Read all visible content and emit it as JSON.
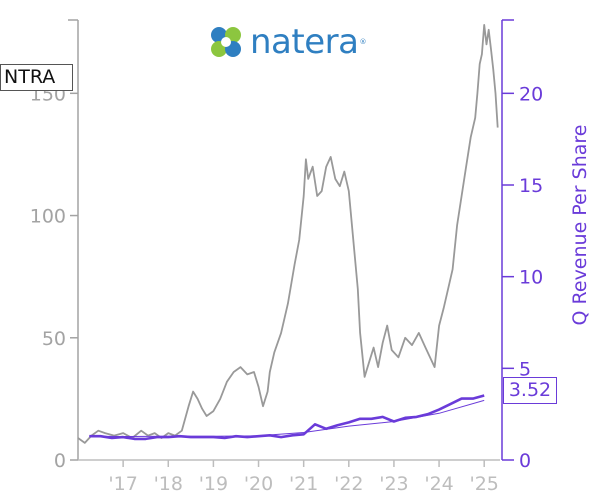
{
  "logo": {
    "text": "natera",
    "reg": "®",
    "colors": [
      "#8cc63f",
      "#2f7fc1"
    ]
  },
  "ticker": "NTRA",
  "last_value_label": "3.52",
  "colors": {
    "price": "#999999",
    "revenue": "#6a3bd9",
    "axis_left": "#a3a3a3",
    "axis_right": "#6a3bd9"
  },
  "chart_data": {
    "type": "line",
    "x_tick_labels": [
      "'17",
      "'18",
      "'19",
      "'20",
      "'21",
      "'22",
      "'23",
      "'24",
      "'25"
    ],
    "x_ticks": [
      2017,
      2018,
      2019,
      2020,
      2021,
      2022,
      2023,
      2024,
      2025
    ],
    "xlim": [
      2016.0,
      2025.35
    ],
    "left_axis": {
      "ylim": [
        0,
        180
      ],
      "ticks": [
        0,
        50,
        100,
        150
      ],
      "tick_labels": [
        "0",
        "50",
        "100",
        "150"
      ]
    },
    "right_axis": {
      "ylabel": "Q Revenue Per Share",
      "ylim": [
        0,
        24
      ],
      "ticks": [
        0,
        5,
        10,
        15,
        20
      ],
      "tick_labels": [
        "0",
        "5",
        "10",
        "15",
        "20"
      ]
    },
    "series": [
      {
        "axis": "left",
        "x": [
          2016.0,
          2016.15,
          2016.3,
          2016.45,
          2016.6,
          2016.8,
          2017.0,
          2017.2,
          2017.4,
          2017.55,
          2017.7,
          2017.85,
          2018.0,
          2018.15,
          2018.3,
          2018.45,
          2018.55,
          2018.65,
          2018.75,
          2018.85,
          2019.0,
          2019.15,
          2019.3,
          2019.45,
          2019.6,
          2019.75,
          2019.9,
          2020.0,
          2020.1,
          2020.2,
          2020.25,
          2020.35,
          2020.5,
          2020.65,
          2020.8,
          2020.9,
          2021.0,
          2021.05,
          2021.1,
          2021.2,
          2021.3,
          2021.4,
          2021.5,
          2021.6,
          2021.7,
          2021.8,
          2021.9,
          2022.0,
          2022.1,
          2022.2,
          2022.25,
          2022.35,
          2022.45,
          2022.55,
          2022.65,
          2022.75,
          2022.85,
          2022.95,
          2023.1,
          2023.25,
          2023.4,
          2023.55,
          2023.7,
          2023.8,
          2023.9,
          2024.0,
          2024.1,
          2024.2,
          2024.3,
          2024.4,
          2024.5,
          2024.6,
          2024.7,
          2024.8,
          2024.85,
          2024.9,
          2024.95,
          2025.0,
          2025.05,
          2025.1,
          2025.15,
          2025.2,
          2025.25,
          2025.3
        ],
        "values": [
          9,
          7,
          10,
          12,
          11,
          10,
          11,
          9,
          12,
          10,
          11,
          9,
          11,
          10,
          12,
          22,
          28,
          25,
          21,
          18,
          20,
          25,
          32,
          36,
          38,
          35,
          36,
          30,
          22,
          28,
          36,
          44,
          52,
          64,
          80,
          90,
          108,
          123,
          115,
          120,
          108,
          110,
          120,
          124,
          115,
          112,
          118,
          110,
          90,
          70,
          52,
          34,
          40,
          46,
          38,
          48,
          55,
          45,
          42,
          50,
          47,
          52,
          46,
          42,
          38,
          55,
          62,
          70,
          78,
          96,
          108,
          120,
          132,
          140,
          150,
          162,
          166,
          178,
          170,
          176,
          168,
          160,
          150,
          136
        ]
      },
      {
        "axis": "right",
        "x": [
          2016.25,
          2016.5,
          2016.75,
          2017.0,
          2017.25,
          2017.5,
          2017.75,
          2018.0,
          2018.25,
          2018.5,
          2018.75,
          2019.0,
          2019.25,
          2019.5,
          2019.75,
          2020.0,
          2020.25,
          2020.5,
          2020.75,
          2021.0,
          2021.25,
          2021.5,
          2021.75,
          2022.0,
          2022.25,
          2022.5,
          2022.75,
          2023.0,
          2023.25,
          2023.5,
          2023.75,
          2024.0,
          2024.25,
          2024.5,
          2024.75,
          2025.0
        ],
        "values": [
          1.3,
          1.3,
          1.2,
          1.25,
          1.15,
          1.15,
          1.25,
          1.25,
          1.3,
          1.25,
          1.25,
          1.25,
          1.2,
          1.3,
          1.25,
          1.3,
          1.35,
          1.25,
          1.35,
          1.4,
          1.95,
          1.7,
          1.9,
          2.05,
          2.25,
          2.25,
          2.35,
          2.1,
          2.3,
          2.35,
          2.5,
          2.75,
          3.05,
          3.35,
          3.35,
          3.52
        ]
      },
      {
        "axis": "right",
        "x": [
          2016.25,
          2017.0,
          2018.0,
          2019.0,
          2020.0,
          2021.0,
          2022.0,
          2023.0,
          2024.0,
          2025.0
        ],
        "values": [
          1.3,
          1.28,
          1.3,
          1.3,
          1.32,
          1.5,
          1.85,
          2.1,
          2.55,
          3.25
        ]
      }
    ]
  }
}
